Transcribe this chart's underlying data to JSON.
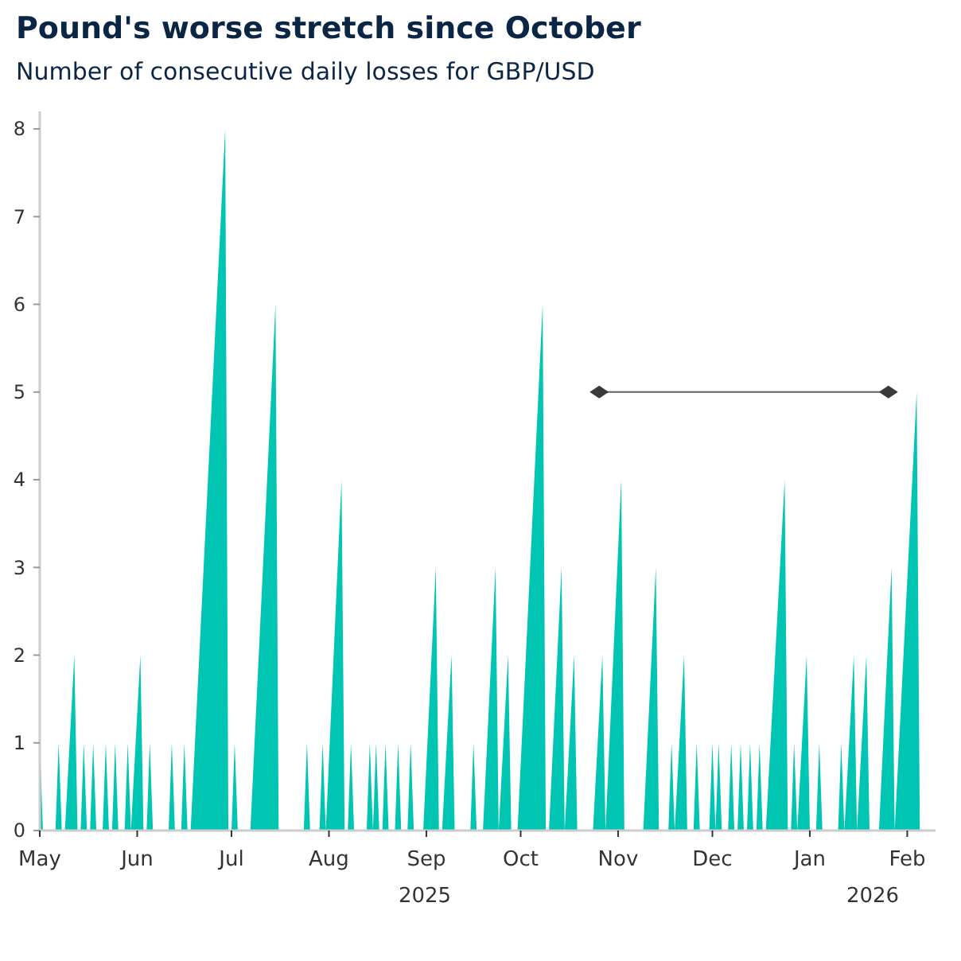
{
  "chart_data": {
    "type": "area",
    "title": "Pound's worse stretch since October",
    "subtitle": "Number of consecutive daily losses for GBP/USD",
    "x": [
      "2025-05-01",
      "2025-05-02",
      "2025-05-06",
      "2025-05-07",
      "2025-05-08",
      "2025-05-09",
      "2025-05-12",
      "2025-05-13",
      "2025-05-14",
      "2025-05-15",
      "2025-05-16",
      "2025-05-17",
      "2025-05-18",
      "2025-05-19",
      "2025-05-21",
      "2025-05-22",
      "2025-05-23",
      "2025-05-24",
      "2025-05-25",
      "2025-05-26",
      "2025-05-28",
      "2025-05-29",
      "2025-05-30",
      "2025-06-02",
      "2025-06-03",
      "2025-06-04",
      "2025-06-05",
      "2025-06-06",
      "2025-06-11",
      "2025-06-12",
      "2025-06-13",
      "2025-06-15",
      "2025-06-16",
      "2025-06-17",
      "2025-06-18",
      "2025-06-29",
      "2025-06-30",
      "2025-07-01",
      "2025-07-02",
      "2025-07-03",
      "2025-07-07",
      "2025-07-15",
      "2025-07-16",
      "2025-07-24",
      "2025-07-25",
      "2025-07-26",
      "2025-07-29",
      "2025-07-30",
      "2025-07-31",
      "2025-08-05",
      "2025-08-06",
      "2025-08-07",
      "2025-08-08",
      "2025-08-09",
      "2025-08-13",
      "2025-08-14",
      "2025-08-15",
      "2025-08-16",
      "2025-08-17",
      "2025-08-18",
      "2025-08-19",
      "2025-08-20",
      "2025-08-22",
      "2025-08-23",
      "2025-08-24",
      "2025-08-26",
      "2025-08-27",
      "2025-08-28",
      "2025-08-31",
      "2025-09-04",
      "2025-09-05",
      "2025-09-06",
      "2025-09-09",
      "2025-09-10",
      "2025-09-15",
      "2025-09-16",
      "2025-09-17",
      "2025-09-19",
      "2025-09-23",
      "2025-09-24",
      "2025-09-27",
      "2025-09-28",
      "2025-09-30",
      "2025-10-08",
      "2025-10-09",
      "2025-10-10",
      "2025-10-14",
      "2025-10-15",
      "2025-10-18",
      "2025-10-19",
      "2025-10-24",
      "2025-10-27",
      "2025-10-28",
      "2025-11-02",
      "2025-11-03",
      "2025-11-09",
      "2025-11-13",
      "2025-11-14",
      "2025-11-17",
      "2025-11-18",
      "2025-11-19",
      "2025-11-22",
      "2025-11-23",
      "2025-11-25",
      "2025-11-26",
      "2025-11-27",
      "2025-11-30",
      "2025-12-01",
      "2025-12-02",
      "2025-12-03",
      "2025-12-04",
      "2025-12-06",
      "2025-12-07",
      "2025-12-08",
      "2025-12-09",
      "2025-12-10",
      "2025-12-11",
      "2025-12-12",
      "2025-12-13",
      "2025-12-14",
      "2025-12-15",
      "2025-12-16",
      "2025-12-17",
      "2025-12-18",
      "2025-12-24",
      "2025-12-25",
      "2025-12-26",
      "2025-12-27",
      "2025-12-28",
      "2025-12-31",
      "2026-01-01",
      "2026-01-03",
      "2026-01-04",
      "2026-01-05",
      "2026-01-10",
      "2026-01-11",
      "2026-01-12",
      "2026-01-15",
      "2026-01-16",
      "2026-01-19",
      "2026-01-20",
      "2026-01-23",
      "2026-01-27",
      "2026-01-28",
      "2026-02-04",
      "2026-02-05"
    ],
    "series": [
      {
        "color": "#00c5b2",
        "values": [
          1,
          0,
          0,
          1,
          0,
          0,
          2,
          0,
          0,
          1,
          0,
          0,
          1,
          0,
          0,
          1,
          0,
          0,
          1,
          0,
          0,
          1,
          0,
          2,
          0,
          0,
          1,
          0,
          0,
          1,
          0,
          0,
          1,
          0,
          0,
          8,
          0,
          0,
          1,
          0,
          0,
          6,
          0,
          0,
          1,
          0,
          0,
          1,
          0,
          4,
          0,
          0,
          1,
          0,
          0,
          1,
          0,
          1,
          0,
          0,
          1,
          0,
          0,
          1,
          0,
          0,
          1,
          0,
          0,
          3,
          0,
          0,
          2,
          0,
          0,
          1,
          0,
          0,
          3,
          0,
          2,
          0,
          0,
          6,
          0,
          0,
          3,
          0,
          2,
          0,
          0,
          2,
          0,
          4,
          0,
          0,
          3,
          0,
          0,
          1,
          0,
          2,
          0,
          0,
          1,
          0,
          0,
          1,
          0,
          1,
          0,
          0,
          1,
          0,
          0,
          1,
          0,
          0,
          1,
          0,
          0,
          1,
          0,
          0,
          4,
          0,
          0,
          1,
          0,
          2,
          0,
          0,
          1,
          0,
          0,
          1,
          0,
          2,
          0,
          2,
          0,
          0,
          3,
          0,
          5,
          0
        ]
      },
      {
        "type": "line",
        "color": "#3a3a3a",
        "marker": "diamond",
        "x": [
          "2025-10-26",
          "2026-01-26"
        ],
        "values": [
          5,
          5
        ]
      }
    ],
    "xlim": [
      "2025-05-01",
      "2026-02-10"
    ],
    "xticks": [
      {
        "value": "2025-05-01",
        "label": "May"
      },
      {
        "value": "2025-06-01",
        "label": "Jun"
      },
      {
        "value": "2025-07-01",
        "label": "Jul"
      },
      {
        "value": "2025-08-01",
        "label": "Aug"
      },
      {
        "value": "2025-09-01",
        "label": "Sep"
      },
      {
        "value": "2025-10-01",
        "label": "Oct"
      },
      {
        "value": "2025-11-01",
        "label": "Nov"
      },
      {
        "value": "2025-12-01",
        "label": "Dec"
      },
      {
        "value": "2026-01-01",
        "label": "Jan"
      },
      {
        "value": "2026-02-01",
        "label": "Feb"
      }
    ],
    "ylim": [
      0,
      8.2
    ],
    "yticks": [
      0,
      1,
      2,
      3,
      4,
      5,
      6,
      7,
      8
    ],
    "grid": false,
    "annotations": [
      "2025",
      "2026"
    ]
  }
}
